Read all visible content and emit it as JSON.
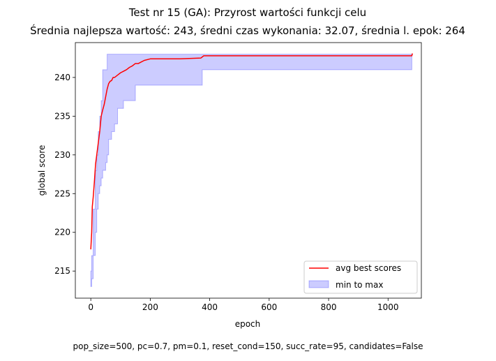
{
  "chart_data": {
    "type": "line",
    "title": "Test nr 15 (GA): Przyrost wartości funkcji celu",
    "subtitle": "Średnia najlepsza wartość: 243, średni czas wykonania: 32.07, średnia l. epok: 264",
    "xlabel": "epoch",
    "ylabel": "global score",
    "xlim": [
      -52,
      1112
    ],
    "ylim": [
      211.5,
      244.5
    ],
    "xticks": [
      0,
      200,
      400,
      600,
      800,
      1000
    ],
    "yticks": [
      215,
      220,
      225,
      230,
      235,
      240
    ],
    "grid": false,
    "legend_position": "lower-right",
    "series": [
      {
        "name": "avg best scores",
        "kind": "line",
        "color": "#ff0000",
        "x": [
          0,
          3,
          5,
          8,
          12,
          16,
          20,
          25,
          30,
          35,
          40,
          45,
          50,
          55,
          60,
          65,
          70,
          75,
          80,
          90,
          100,
          110,
          120,
          130,
          140,
          150,
          160,
          170,
          180,
          200,
          300,
          370,
          380,
          1080,
          1082
        ],
        "y": [
          217.8,
          220.0,
          223.3,
          224.5,
          226.5,
          228.8,
          230.0,
          231.5,
          233.0,
          235.0,
          235.8,
          236.5,
          237.5,
          238.5,
          239.2,
          239.5,
          239.6,
          240.0,
          240.0,
          240.3,
          240.6,
          240.8,
          241.0,
          241.3,
          241.5,
          241.8,
          241.8,
          242.0,
          242.2,
          242.4,
          242.4,
          242.5,
          242.8,
          242.8,
          243.1
        ]
      },
      {
        "name": "min to max",
        "kind": "band",
        "color": "#0000ff",
        "x": [
          0,
          3,
          8,
          15,
          20,
          25,
          30,
          35,
          40,
          50,
          55,
          60,
          70,
          80,
          90,
          100,
          110,
          120,
          150,
          370,
          375,
          1080
        ],
        "lower": [
          213.0,
          214.0,
          217.0,
          220.0,
          223.0,
          225.0,
          226.0,
          227.0,
          228.0,
          229.0,
          230.0,
          232.0,
          233.0,
          234.0,
          236.0,
          236.0,
          237.0,
          237.0,
          239.0,
          239.0,
          241.0,
          241.0
        ],
        "upper": [
          215.0,
          217.0,
          223.0,
          228.0,
          230.0,
          233.0,
          235.0,
          237.0,
          241.0,
          241.0,
          243.0,
          243.0,
          243.0,
          243.0,
          243.0,
          243.0,
          243.0,
          243.0,
          243.0,
          243.0,
          243.0,
          243.0
        ]
      }
    ]
  },
  "footer": "pop_size=500, pc=0.7, pm=0.1, reset_cond=150, succ_rate=95, candidates=False"
}
